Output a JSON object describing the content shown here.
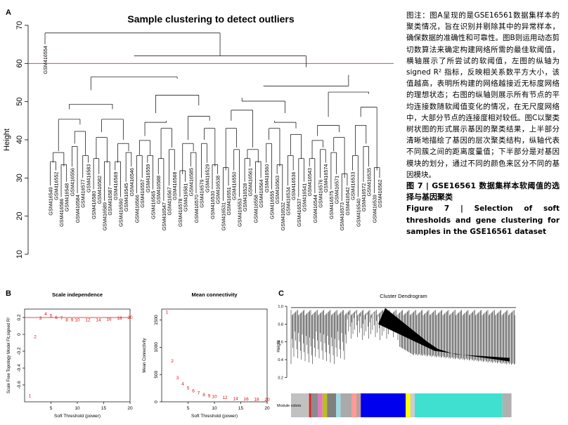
{
  "panel_letters": {
    "a": "A",
    "b": "B",
    "c": "C"
  },
  "caption": {
    "body_zh": "图注：图A呈现的是GSE16561数据集样本的聚类情况，旨在识别并剔除其中的异常样本，确保数据的准确性和可靠性。图B则运用动态剪切数算法来确定构建网络所需的最佳软阈值，横轴展示了所尝试的软阈值，左图的纵轴为signed R² 指标，反映相关系数平方大小，该值越高，表明所构建的网络越接近无标度网络的理想状态；右图的纵轴则展示所有节点的平均连接数随软阈值变化的情况，在无尺度网络中，大部分节点的连接度相对较低。图C以聚类树状图的形式展示基因的聚类结果，上半部分清晰地描绘了基因的层次聚类结构，纵轴代表不同簇之间的距离度量值；下半部分是对基因模块的划分，通过不同的颜色来区分不同的基因模块。",
    "fig_zh": "图 7 | GSE16561 数据集样本软阈值的选择与基因聚类",
    "fig_en": "Figure 7 | Selection of soft thresholds and gene clustering for samples in the GSE16561 dataset"
  },
  "chart_data": [
    {
      "type": "dendrogram",
      "title": "Sample clustering to detect outliers",
      "ylabel": "Height",
      "ylim": [
        10,
        70
      ],
      "yticks": [
        10,
        20,
        30,
        40,
        50,
        60,
        70
      ],
      "cut_line": 60,
      "leaves": [
        "GSM416554",
        "GSM416549",
        "GSM416552",
        "GSM416586",
        "GSM416548",
        "GSM416556",
        "GSM416584",
        "GSM416577",
        "GSM416583",
        "GSM416580",
        "GSM416582",
        "GSM416589",
        "GSM416587",
        "GSM416569",
        "GSM416590",
        "GSM416545",
        "GSM416546",
        "GSM416566",
        "GSM416557",
        "GSM416559",
        "GSM416565",
        "GSM416588",
        "GSM416547",
        "GSM416567",
        "GSM416568",
        "GSM416578",
        "GSM416581",
        "GSM416585",
        "GSM416570",
        "GSM416579",
        "GSM416529",
        "GSM416530",
        "GSM416538",
        "GSM416531",
        "GSM416551",
        "GSM416550",
        "GSM416553",
        "GSM416528",
        "GSM416561",
        "GSM416558",
        "GSM416564",
        "GSM416560",
        "GSM416555",
        "GSM416563",
        "GSM416532",
        "GSM416534",
        "GSM416536",
        "GSM416537",
        "GSM416541",
        "GSM416543",
        "GSM416544",
        "GSM416576",
        "GSM416574",
        "GSM416575",
        "GSM416571",
        "GSM416573",
        "GSM416542",
        "GSM416533",
        "GSM416540",
        "GSM416572",
        "GSM416535",
        "GSM416539",
        "GSM416562"
      ]
    },
    {
      "type": "scatter",
      "title": "Scale independence",
      "xlabel": "Soft Threshold (power)",
      "ylabel": "Scale Free Topology Model Fit,signed R²",
      "xlim": [
        0,
        20
      ],
      "ylim": [
        -0.8,
        0.3
      ],
      "xticks": [
        5,
        10,
        15,
        20
      ],
      "yticks": [
        -0.6,
        -0.4,
        -0.2,
        0.0,
        0.2
      ],
      "hline": 0.2,
      "x": [
        1,
        2,
        3,
        4,
        5,
        6,
        7,
        8,
        9,
        10,
        12,
        14,
        16,
        18,
        20
      ],
      "y": [
        -0.73,
        -0.03,
        0.19,
        0.24,
        0.22,
        0.2,
        0.19,
        0.17,
        0.17,
        0.17,
        0.17,
        0.17,
        0.18,
        0.19,
        0.2
      ]
    },
    {
      "type": "scatter",
      "title": "Mean connectivity",
      "xlabel": "Soft Threshold (power)",
      "ylabel": "Mean Connectivity",
      "xlim": [
        0,
        20
      ],
      "ylim": [
        0,
        1700
      ],
      "xticks": [
        5,
        10,
        15,
        20
      ],
      "yticks": [
        0,
        500,
        1000,
        1500
      ],
      "x": [
        1,
        2,
        3,
        4,
        5,
        6,
        7,
        8,
        9,
        10,
        12,
        14,
        16,
        18,
        20
      ],
      "y": [
        1640,
        750,
        440,
        330,
        250,
        200,
        160,
        130,
        110,
        95,
        75,
        60,
        50,
        42,
        36
      ]
    },
    {
      "type": "dendrogram",
      "title": "Cluster Dendrogram",
      "ylabel": "Height",
      "ylim": [
        0.1,
        1.0
      ],
      "yticks": [
        0.2,
        0.3,
        0.4,
        0.5,
        0.6,
        0.7,
        0.8,
        0.9,
        1.0
      ],
      "colorbar_label": "Module colors"
    }
  ]
}
